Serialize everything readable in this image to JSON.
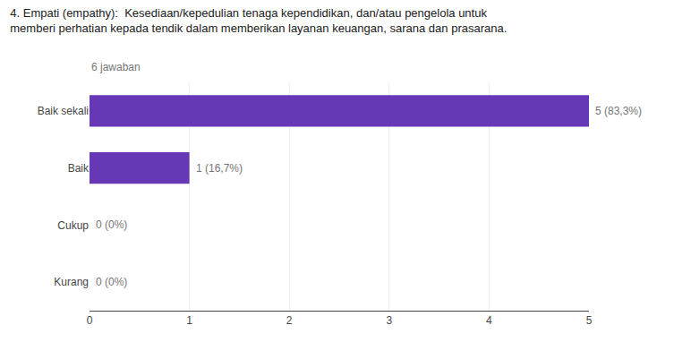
{
  "chart_data": {
    "type": "bar",
    "orientation": "horizontal",
    "title": [
      "4. Empati (empathy):  Kesediaan/kepedulian tenaga kependidikan, dan/atau pengelola untuk",
      "memberi perhatian kepada tendik dalam memberikan layanan keuangan, sarana dan prasarana."
    ],
    "subtitle": "6 jawaban",
    "categories": [
      "Baik sekali",
      "Baik",
      "Cukup",
      "Kurang"
    ],
    "values": [
      5,
      1,
      0,
      0
    ],
    "value_labels": [
      "5 (83,3%)",
      "1 (16,7%)",
      "0 (0%)",
      "0 (0%)"
    ],
    "data_labels": true,
    "color": "#6638b6",
    "xlim": [
      0,
      5
    ],
    "xticks": [
      0,
      1,
      2,
      3,
      4,
      5
    ],
    "grid": true
  }
}
